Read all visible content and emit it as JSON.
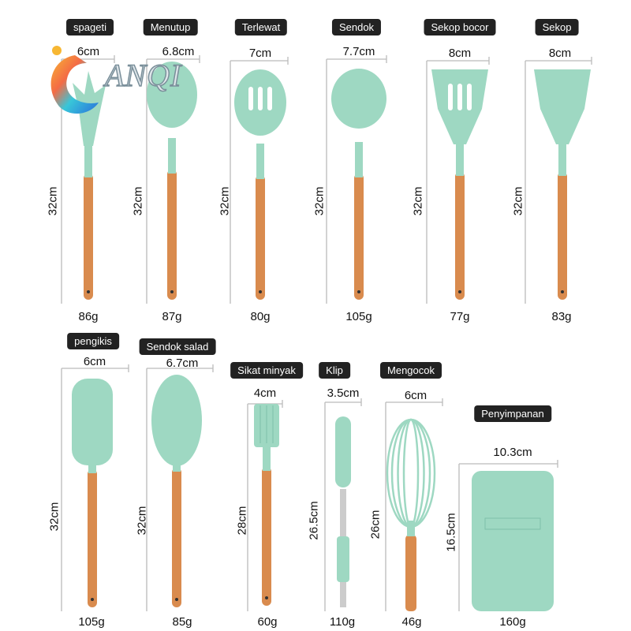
{
  "brand": {
    "logo_text": "ANQI"
  },
  "colors": {
    "silicone": "#9ed8c2",
    "wood": "#d98b4e",
    "badge": "#222222"
  },
  "items": [
    {
      "name": "spageti",
      "width": "6cm",
      "height": "32cm",
      "weight": "86g"
    },
    {
      "name": "Menutup",
      "width": "6.8cm",
      "height": "32cm",
      "weight": "87g"
    },
    {
      "name": "Terlewat",
      "width": "7cm",
      "height": "32cm",
      "weight": "80g"
    },
    {
      "name": "Sendok",
      "width": "7.7cm",
      "height": "32cm",
      "weight": "105g"
    },
    {
      "name": "Sekop bocor",
      "width": "8cm",
      "height": "32cm",
      "weight": "77g"
    },
    {
      "name": "Sekop",
      "width": "8cm",
      "height": "32cm",
      "weight": "83g"
    },
    {
      "name": "pengikis",
      "width": "6cm",
      "height": "32cm",
      "weight": "105g"
    },
    {
      "name": "Sendok salad",
      "width": "6.7cm",
      "height": "32cm",
      "weight": "85g"
    },
    {
      "name": "Sikat minyak",
      "width": "4cm",
      "height": "28cm",
      "weight": "60g"
    },
    {
      "name": "Klip",
      "width": "3.5cm",
      "height": "26.5cm",
      "weight": "110g"
    },
    {
      "name": "Mengocok",
      "width": "6cm",
      "height": "26cm",
      "weight": "46g"
    },
    {
      "name": "Penyimpanan",
      "width": "10.3cm",
      "height": "16.5cm",
      "weight": "160g"
    }
  ]
}
